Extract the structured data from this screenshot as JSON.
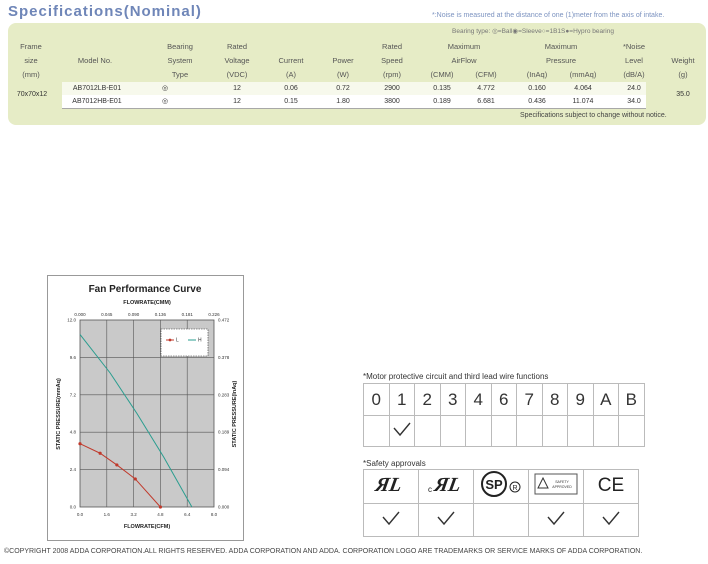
{
  "title": "Specifications(Nominal)",
  "note": "*:Noise is measured at the distance of one (1)meter from the axis of intake.",
  "bearing_legend": "Bearing type:  ◎=Ball◉=Sleeve○=1B1S●=Hypro bearing",
  "headers": {
    "frame": [
      "Frame",
      "size",
      "(mm)"
    ],
    "model": "Model No.",
    "bearing": [
      "Bearing",
      "System",
      "Type"
    ],
    "voltage": [
      "Rated",
      "Voltage",
      "(VDC)"
    ],
    "current": [
      "Current",
      "(A)"
    ],
    "power": [
      "Power",
      "(W)"
    ],
    "speed": [
      "Rated",
      "Speed",
      "(rpm)"
    ],
    "airflow": [
      "Maximum",
      "AirFlow"
    ],
    "airflow_units": [
      "(CMM)",
      "(CFM)"
    ],
    "pressure": [
      "Maximum",
      "Pressure"
    ],
    "pressure_units": [
      "(InAq)",
      "(mmAq)"
    ],
    "noise": [
      "*Noise",
      "Level",
      "(dB/A)"
    ],
    "weight": [
      "Weight",
      "(g)"
    ]
  },
  "frame_size": "70x70x12",
  "weight": "35.0",
  "rows": [
    {
      "model": "AB7012LB-E01",
      "bearing": "◎",
      "voltage": "12",
      "current": "0.06",
      "power": "0.72",
      "speed": "2900",
      "cmm": "0.135",
      "cfm": "4.772",
      "inaq": "0.160",
      "mmaq": "4.064",
      "noise": "24.0"
    },
    {
      "model": "AB7012HB-E01",
      "bearing": "◎",
      "voltage": "12",
      "current": "0.15",
      "power": "1.80",
      "speed": "3800",
      "cmm": "0.189",
      "cfm": "6.681",
      "inaq": "0.436",
      "mmaq": "11.074",
      "noise": "34.0"
    }
  ],
  "disclaimer": "Specifications subject to change without notice.",
  "chart_data": {
    "type": "line",
    "title": "Fan Performance Curve",
    "xlabel": "FLOWRATE(CFM)",
    "x2label": "FLOWRATE(CMM)",
    "ylabel": "STATIC PRESSURE(mmAq)",
    "y2label": "STATIC PRESSURE(InAq)",
    "xlim": [
      0,
      8
    ],
    "ylim": [
      0,
      12
    ],
    "x_ticks": [
      "0.0",
      "1.6",
      "3.2",
      "4.8",
      "6.4",
      "8.0"
    ],
    "x2_ticks": [
      "0.000",
      "0.045",
      "0.090",
      "0.136",
      "0.181",
      "0.226"
    ],
    "y_ticks": [
      "0.0",
      "2.4",
      "4.8",
      "7.2",
      "9.6",
      "12.0"
    ],
    "y2_ticks": [
      "0.000",
      "0.094",
      "0.189",
      "0.283",
      "0.378",
      "0.472"
    ],
    "grid": true,
    "legend": "top-right",
    "series": [
      {
        "name": "L",
        "color": "#c0392b",
        "marker": true,
        "x": [
          0.0,
          1.2,
          2.2,
          3.3,
          4.8
        ],
        "y": [
          4.06,
          3.45,
          2.7,
          1.8,
          0.0
        ]
      },
      {
        "name": "H",
        "color": "#2a9d8f",
        "marker": false,
        "x": [
          0.0,
          1.8,
          3.4,
          5.0,
          6.68
        ],
        "y": [
          11.07,
          8.6,
          6.0,
          3.2,
          0.0
        ]
      }
    ]
  },
  "motor_title": "*Motor protective circuit and third lead wire functions",
  "motor_codes": [
    "0",
    "1",
    "2",
    "3",
    "4",
    "6",
    "7",
    "8",
    "9",
    "A",
    "B"
  ],
  "motor_checks": [
    false,
    true,
    false,
    false,
    false,
    false,
    false,
    false,
    false,
    false,
    false
  ],
  "safety_title": "*Safety approvals",
  "safety_logos": [
    "UL",
    "cUL",
    "CSA",
    "TUV",
    "CE"
  ],
  "safety_checks": [
    true,
    true,
    false,
    true,
    true
  ],
  "tuv_text": [
    "SAFETY",
    "APPROVED"
  ],
  "copyright": "©COPYRIGHT 2008 ADDA CORPORATION.ALL RIGHTS RESERVED. ADDA CORPORATION AND ADDA. CORPORATION LOGO ARE TRADEMARKS OR SERVICE MARKS OF ADDA CORPORATION."
}
